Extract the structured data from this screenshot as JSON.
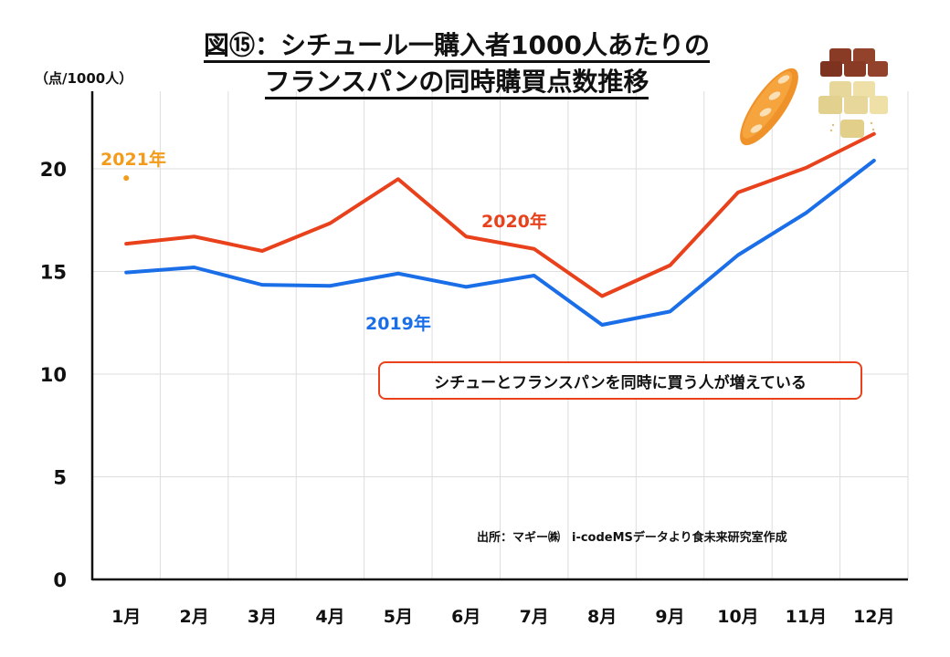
{
  "title": {
    "line1": "図⑮：シチュール一購入者1000人あたりの",
    "line2": "フランスパンの同時購買点数推移"
  },
  "unit_label": "（点/1000人）",
  "callout": "シチューとフランスパンを同時に買う人が増えている",
  "source": "出所：マギー㈱　i-codeMSデータより食未来研究室作成",
  "illustration": "baguette-and-stew-roux-blocks",
  "colors": {
    "2019": "#1a6ee8",
    "2020": "#e8411b",
    "2021": "#f39b1b",
    "grid": "#dddddd",
    "axis": "#111111"
  },
  "chart_data": {
    "type": "line",
    "title": "図⑮：シチュール一購入者1000人あたりのフランスパンの同時購買点数推移",
    "xlabel": "",
    "ylabel": "（点/1000人）",
    "categories": [
      "1月",
      "2月",
      "3月",
      "4月",
      "5月",
      "6月",
      "7月",
      "8月",
      "9月",
      "10月",
      "11月",
      "12月"
    ],
    "yticks": [
      "0",
      "5",
      "10",
      "15",
      "20"
    ],
    "ylim": [
      0,
      23
    ],
    "grid": true,
    "series": [
      {
        "name": "2019年",
        "values": [
          14.95,
          15.2,
          14.35,
          14.3,
          14.9,
          14.25,
          14.8,
          12.4,
          13.05,
          15.8,
          17.85,
          20.4
        ]
      },
      {
        "name": "2020年",
        "values": [
          16.35,
          16.7,
          16.0,
          17.35,
          19.5,
          16.7,
          16.1,
          13.8,
          15.3,
          18.85,
          20.05,
          21.7
        ]
      },
      {
        "name": "2021年",
        "values": [
          19.55,
          null,
          null,
          null,
          null,
          null,
          null,
          null,
          null,
          null,
          null,
          null
        ]
      }
    ],
    "annotations": [
      "シチューとフランスパンを同時に買う人が増えている",
      "出所：マギー㈱　i-codeMSデータより食未来研究室作成"
    ],
    "legend": "inline-labels"
  }
}
